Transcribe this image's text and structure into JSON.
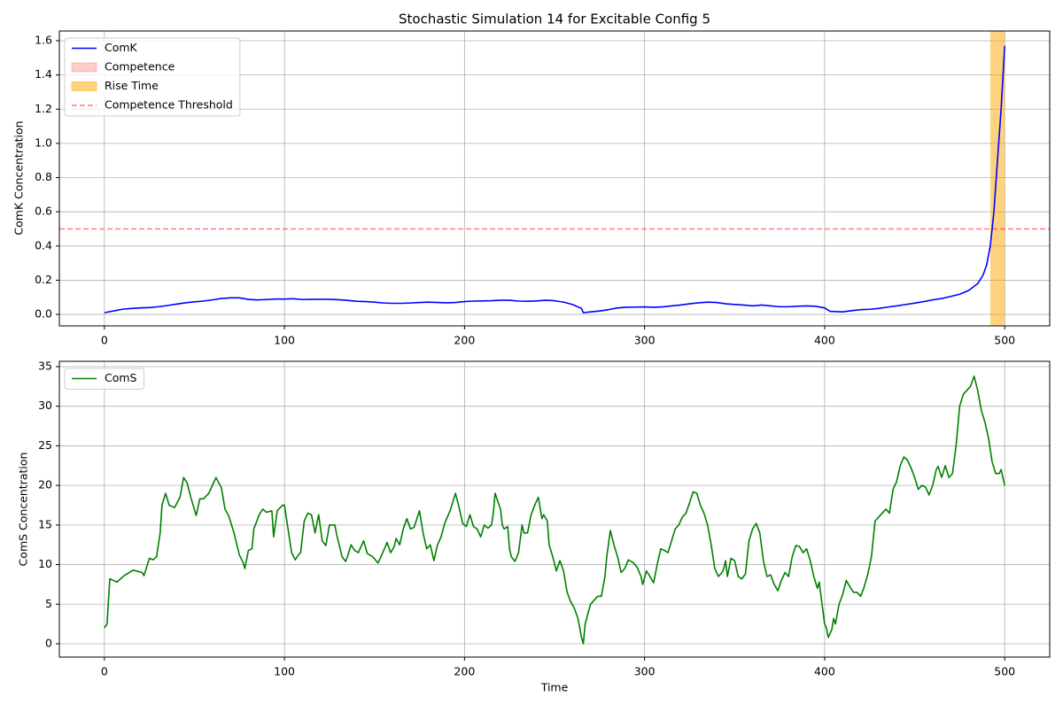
{
  "chart_data": [
    {
      "type": "line",
      "title": "Stochastic Simulation 14 for Excitable Config 5",
      "ylabel": "ComK Concentration",
      "xlim": [
        -25,
        525
      ],
      "xticks": [
        0,
        100,
        200,
        300,
        400,
        500
      ],
      "ylim": [
        -0.067,
        1.657
      ],
      "yticks": [
        {
          "value": 0,
          "label": "0.0"
        },
        0.2,
        0.4,
        0.6,
        0.8,
        {
          "value": 1,
          "label": "1.0"
        },
        1.2,
        1.4,
        1.6
      ],
      "grid": true,
      "legend": "upper left",
      "x": [
        0,
        5,
        10,
        15,
        20,
        25,
        30,
        35,
        40,
        45,
        50,
        55,
        60,
        65,
        70,
        75,
        80,
        85,
        90,
        95,
        100,
        105,
        110,
        115,
        120,
        125,
        130,
        135,
        140,
        145,
        150,
        155,
        160,
        165,
        170,
        175,
        180,
        185,
        190,
        195,
        200,
        205,
        210,
        215,
        220,
        225,
        230,
        235,
        240,
        245,
        250,
        255,
        260,
        265,
        266,
        270,
        275,
        280,
        285,
        290,
        295,
        300,
        305,
        310,
        315,
        320,
        325,
        330,
        335,
        340,
        345,
        350,
        355,
        360,
        365,
        370,
        375,
        380,
        385,
        390,
        395,
        400,
        403,
        410,
        415,
        420,
        425,
        430,
        435,
        440,
        445,
        450,
        455,
        460,
        465,
        470,
        475,
        480,
        485,
        488,
        490,
        492,
        494,
        496,
        498,
        500
      ],
      "series": [
        {
          "name": "ComK",
          "color": "#0000ff",
          "values": [
            0.01,
            0.02,
            0.03,
            0.035,
            0.038,
            0.04,
            0.045,
            0.052,
            0.06,
            0.068,
            0.074,
            0.078,
            0.085,
            0.093,
            0.097,
            0.097,
            0.088,
            0.085,
            0.087,
            0.09,
            0.09,
            0.092,
            0.087,
            0.088,
            0.089,
            0.088,
            0.086,
            0.082,
            0.077,
            0.075,
            0.072,
            0.067,
            0.065,
            0.065,
            0.067,
            0.07,
            0.072,
            0.07,
            0.068,
            0.07,
            0.075,
            0.078,
            0.079,
            0.08,
            0.083,
            0.083,
            0.078,
            0.077,
            0.079,
            0.083,
            0.08,
            0.072,
            0.058,
            0.035,
            0.01,
            0.015,
            0.02,
            0.028,
            0.038,
            0.042,
            0.043,
            0.044,
            0.042,
            0.044,
            0.05,
            0.055,
            0.062,
            0.068,
            0.072,
            0.07,
            0.062,
            0.058,
            0.055,
            0.05,
            0.055,
            0.05,
            0.045,
            0.045,
            0.048,
            0.05,
            0.048,
            0.038,
            0.018,
            0.015,
            0.022,
            0.028,
            0.03,
            0.035,
            0.043,
            0.05,
            0.058,
            0.066,
            0.075,
            0.085,
            0.093,
            0.105,
            0.118,
            0.14,
            0.18,
            0.23,
            0.29,
            0.4,
            0.6,
            0.9,
            1.2,
            1.57
          ]
        }
      ],
      "spans": [
        {
          "name": "Competence",
          "color": "#ff0000",
          "alpha": 0.2
        },
        {
          "name": "Rise Time",
          "color": "#ffa500",
          "alpha": 0.5,
          "start": 492,
          "end": 500
        }
      ],
      "hlines": [
        {
          "name": "Competence Threshold",
          "value": 0.5,
          "color": "#ff0000",
          "alpha": 0.5,
          "style": "dashed"
        }
      ]
    },
    {
      "type": "line",
      "xlabel": "Time",
      "ylabel": "ComS Concentration",
      "xlim": [
        -25,
        525
      ],
      "xticks": [
        0,
        100,
        200,
        300,
        400,
        500
      ],
      "ylim": [
        -1.68,
        35.67
      ],
      "yticks": [
        0,
        5,
        10,
        15,
        20,
        25,
        30,
        35
      ],
      "grid": true,
      "legend": "upper left",
      "x": [
        0,
        1.5,
        3,
        5,
        7,
        11,
        16,
        21,
        22,
        25,
        27,
        29,
        31,
        32,
        34,
        36,
        39,
        42,
        44,
        46,
        48,
        51,
        53,
        55,
        58,
        60,
        62,
        65,
        67,
        69,
        72,
        75,
        77,
        78,
        80,
        82,
        83,
        86,
        88,
        90,
        93,
        94,
        96,
        99,
        100,
        102,
        104,
        106,
        108,
        109,
        111,
        113,
        115,
        117,
        119,
        121,
        123,
        125,
        128,
        129,
        132,
        134,
        135,
        137,
        139,
        141,
        144,
        146,
        149,
        152,
        155,
        157,
        159,
        161,
        162,
        164,
        166,
        168,
        170,
        172,
        175,
        177,
        179,
        181,
        183,
        185,
        187,
        189,
        192,
        195,
        197,
        199,
        201,
        203,
        205,
        207,
        209,
        211,
        213,
        215,
        216,
        217,
        220,
        221,
        222,
        224,
        225,
        226,
        228,
        230,
        232,
        233,
        235,
        237,
        239,
        241,
        243,
        244,
        246,
        247,
        249,
        251,
        253,
        255,
        257,
        259,
        261,
        263,
        265,
        266,
        267,
        270,
        272,
        274,
        276,
        278,
        279,
        281,
        283,
        285,
        287,
        289,
        291,
        294,
        296,
        298,
        299,
        301,
        303,
        305,
        307,
        309,
        311,
        313,
        315,
        317,
        319,
        321,
        323,
        325,
        327,
        329,
        331,
        333,
        335,
        337,
        339,
        341,
        343,
        344,
        345,
        346,
        348,
        350,
        352,
        354,
        356,
        358,
        360,
        362,
        364,
        366,
        368,
        370,
        372,
        374,
        376,
        378,
        380,
        382,
        384,
        386,
        388,
        390,
        392,
        394,
        396,
        397,
        398,
        400,
        401,
        402,
        404,
        405,
        406,
        408,
        410,
        412,
        414,
        416,
        418,
        420,
        422,
        424,
        426,
        428,
        430,
        432,
        434,
        436,
        438,
        440,
        442,
        444,
        446,
        448,
        450,
        452,
        454,
        456,
        458,
        460,
        462,
        463,
        465,
        467,
        469,
        471,
        473,
        475,
        477,
        479,
        481,
        483,
        485,
        487,
        489,
        491,
        493,
        495,
        497,
        498,
        500
      ],
      "series": [
        {
          "name": "ComS",
          "color": "#008000",
          "values": [
            2,
            2.5,
            8.2,
            8.0,
            7.8,
            8.6,
            9.3,
            9.0,
            8.6,
            10.8,
            10.6,
            11,
            14,
            17.5,
            19,
            17.5,
            17.2,
            18.5,
            21,
            20.3,
            18.5,
            16.2,
            18.3,
            18.3,
            19,
            20,
            21,
            19.7,
            17,
            16.2,
            14,
            11.2,
            10.3,
            9.5,
            11.8,
            12,
            14.5,
            16.3,
            17,
            16.6,
            16.8,
            13.5,
            16.8,
            17.5,
            17.5,
            14.5,
            11.5,
            10.6,
            11.3,
            11.5,
            15.5,
            16.5,
            16.3,
            14,
            16.3,
            13,
            12.4,
            15,
            15,
            13.8,
            11,
            10.4,
            11,
            12.5,
            11.8,
            11.5,
            13,
            11.4,
            11,
            10.2,
            11.7,
            12.8,
            11.5,
            12.3,
            13.3,
            12.5,
            14.5,
            15.8,
            14.5,
            14.7,
            16.8,
            14,
            12,
            12.5,
            10.5,
            12.5,
            13.5,
            15.2,
            16.8,
            19,
            17.2,
            15.2,
            14.8,
            16.3,
            14.8,
            14.5,
            13.5,
            15,
            14.6,
            15,
            16.5,
            19,
            17,
            15,
            14.5,
            14.8,
            12,
            11,
            10.4,
            11.5,
            15,
            14,
            14,
            16.3,
            17.5,
            18.5,
            15.8,
            16.3,
            15.5,
            12.5,
            11,
            9.2,
            10.5,
            9.2,
            6.5,
            5.3,
            4.5,
            3.2,
            0.8,
            0,
            2.5,
            5,
            5.5,
            6,
            6,
            8.5,
            11,
            14.3,
            12.5,
            11,
            9,
            9.5,
            10.6,
            10.2,
            9.6,
            8.5,
            7.5,
            9.2,
            8.5,
            7.7,
            10,
            12,
            11.8,
            11.5,
            13,
            14.5,
            15,
            16,
            16.5,
            17.8,
            19.2,
            19,
            17.5,
            16.5,
            15,
            12.5,
            9.5,
            8.5,
            9,
            9.5,
            10.5,
            8.5,
            10.8,
            10.5,
            8.5,
            8.2,
            8.8,
            13,
            14.5,
            15.2,
            14,
            10.5,
            8.5,
            8.7,
            7.5,
            6.7,
            8,
            9,
            8.5,
            11,
            12.4,
            12.3,
            11.5,
            12,
            10.5,
            8.5,
            7,
            7.8,
            6,
            2.5,
            2,
            0.8,
            1.8,
            3.2,
            2.5,
            5,
            6.2,
            8,
            7.2,
            6.5,
            6.5,
            6,
            7.2,
            8.8,
            11,
            15.5,
            16,
            16.5,
            17,
            16.5,
            19.5,
            20.5,
            22.5,
            23.6,
            23.2,
            22.2,
            21,
            19.5,
            20,
            19.8,
            18.8,
            20,
            22,
            22.4,
            21,
            22.5,
            21,
            21.5,
            25,
            30,
            31.5,
            32,
            32.5,
            33.8,
            32,
            29.5,
            28,
            26,
            23,
            21.5,
            21.5,
            22,
            20
          ]
        }
      ]
    }
  ]
}
